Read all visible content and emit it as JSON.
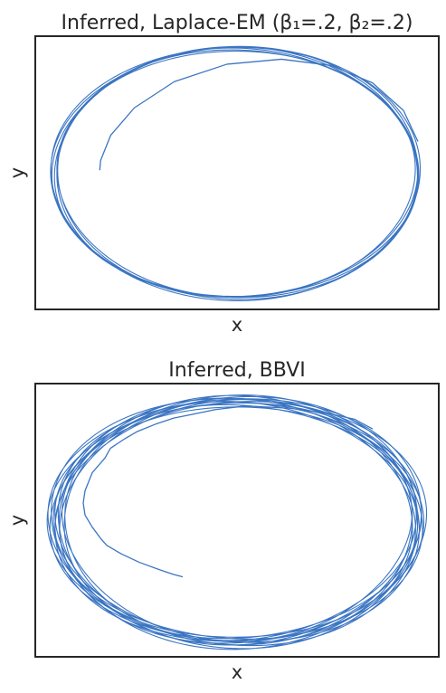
{
  "chart_data": [
    {
      "type": "line",
      "title": "Inferred, Laplace-EM (β₁=.2, β₂=.2)",
      "xlabel": "x",
      "ylabel": "y",
      "xticks": [],
      "yticks": [],
      "grid": false,
      "color": "#3b75c2",
      "series": [
        {
          "kind": "transient",
          "points": [
            [
              -0.75,
              0.02
            ],
            [
              -0.745,
              0.1
            ],
            [
              -0.69,
              0.3
            ],
            [
              -0.56,
              0.52
            ],
            [
              -0.34,
              0.73
            ],
            [
              -0.05,
              0.87
            ],
            [
              0.25,
              0.91
            ],
            [
              0.52,
              0.86
            ],
            [
              0.75,
              0.72
            ],
            [
              0.92,
              0.5
            ],
            [
              1.0,
              0.25
            ]
          ]
        },
        {
          "kind": "limit-cycle",
          "center": [
            0,
            0
          ],
          "radius_x": 1.0,
          "radius_y": 1.0,
          "spread": 0.03
        }
      ]
    },
    {
      "type": "line",
      "title": "Inferred, BBVI",
      "xlabel": "x",
      "ylabel": "y",
      "xticks": [],
      "yticks": [],
      "grid": false,
      "color": "#3b75c2",
      "series": [
        {
          "kind": "transient",
          "points": [
            [
              -0.3,
              -0.46
            ],
            [
              -0.35,
              -0.44
            ],
            [
              -0.43,
              -0.4
            ],
            [
              -0.54,
              -0.34
            ],
            [
              -0.64,
              -0.27
            ],
            [
              -0.72,
              -0.2
            ],
            [
              -0.75,
              -0.15
            ],
            [
              -0.8,
              -0.05
            ],
            [
              -0.84,
              0.05
            ],
            [
              -0.85,
              0.15
            ],
            [
              -0.84,
              0.25
            ],
            [
              -0.8,
              0.4
            ],
            [
              -0.73,
              0.52
            ],
            [
              -0.7,
              0.6
            ],
            [
              -0.62,
              0.68
            ],
            [
              -0.55,
              0.74
            ],
            [
              -0.45,
              0.8
            ],
            [
              -0.35,
              0.85
            ],
            [
              -0.25,
              0.88
            ],
            [
              -0.12,
              0.92
            ],
            [
              0.05,
              0.95
            ],
            [
              0.3,
              0.93
            ],
            [
              0.5,
              0.89
            ],
            [
              0.65,
              0.84
            ],
            [
              0.75,
              0.76
            ]
          ]
        },
        {
          "kind": "limit-cycle",
          "center": [
            0,
            0
          ],
          "radius_x": 1.0,
          "radius_y": 1.0,
          "spread": 0.07
        }
      ]
    }
  ]
}
